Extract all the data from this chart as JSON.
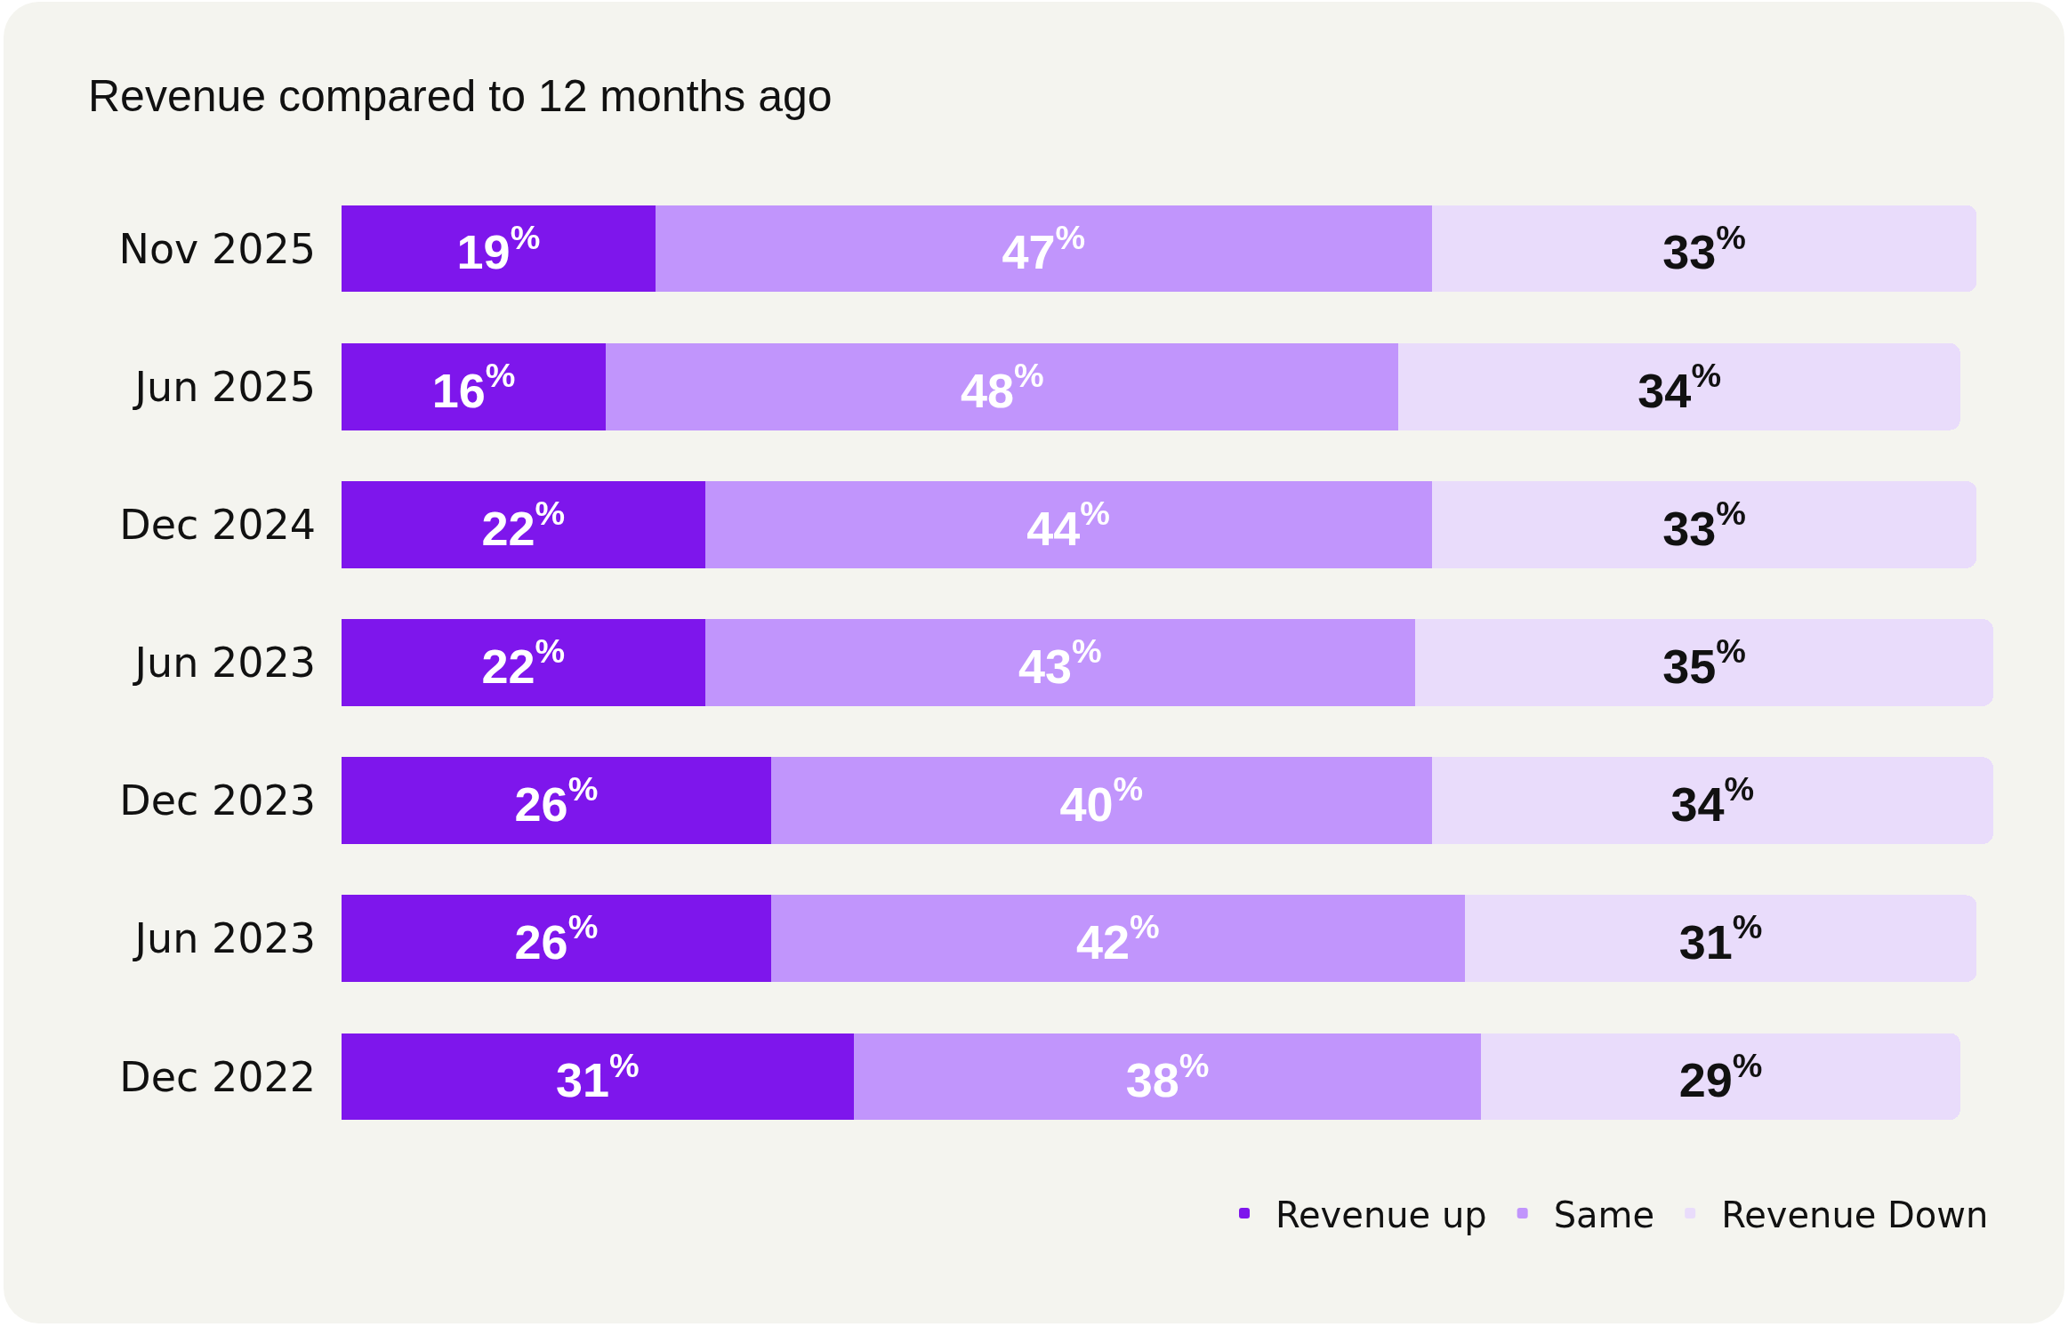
{
  "chart_data": {
    "type": "bar",
    "orientation": "horizontal",
    "stacked": true,
    "title": "Revenue compared to 12 months ago",
    "categories": [
      "Nov 2025",
      "Jun 2025",
      "Dec 2024",
      "Jun 2023",
      "Dec 2023",
      "Jun 2023",
      "Dec 2022"
    ],
    "xlim": [
      0,
      100
    ],
    "tick_labels": "y",
    "grid": false,
    "legend": "bottom right",
    "series": [
      {
        "name": "Revenue up",
        "color": "#7e16ec",
        "values": [
          19,
          16,
          22,
          22,
          26,
          26,
          31
        ],
        "value_labels": [
          "19$^{%}$",
          "16$^{%}$",
          "22$^{%}$",
          "22$^{%}$",
          "26$^{%}$",
          "26$^{%}$",
          "31$^{%}$"
        ]
      },
      {
        "name": "Same",
        "color": "#c195fc",
        "values": [
          47,
          48,
          44,
          43,
          40,
          42,
          38
        ],
        "value_labels": [
          "47$^{%}$",
          "48$^{%}$",
          "44$^{%}$",
          "43$^{%}$",
          "40$^{%}$",
          "42$^{%}$",
          "38$^{%}$"
        ]
      },
      {
        "name": "Revenue Down",
        "color": "#e9dcfb",
        "values": [
          33,
          34,
          33,
          35,
          34,
          31,
          29
        ],
        "value_labels": [
          "33$^{%}$",
          "34$^{%}$",
          "33$^{%}$",
          "35$^{%}$",
          "34$^{%}$",
          "31$^{%}$",
          "29$^{%}$"
        ]
      }
    ]
  }
}
